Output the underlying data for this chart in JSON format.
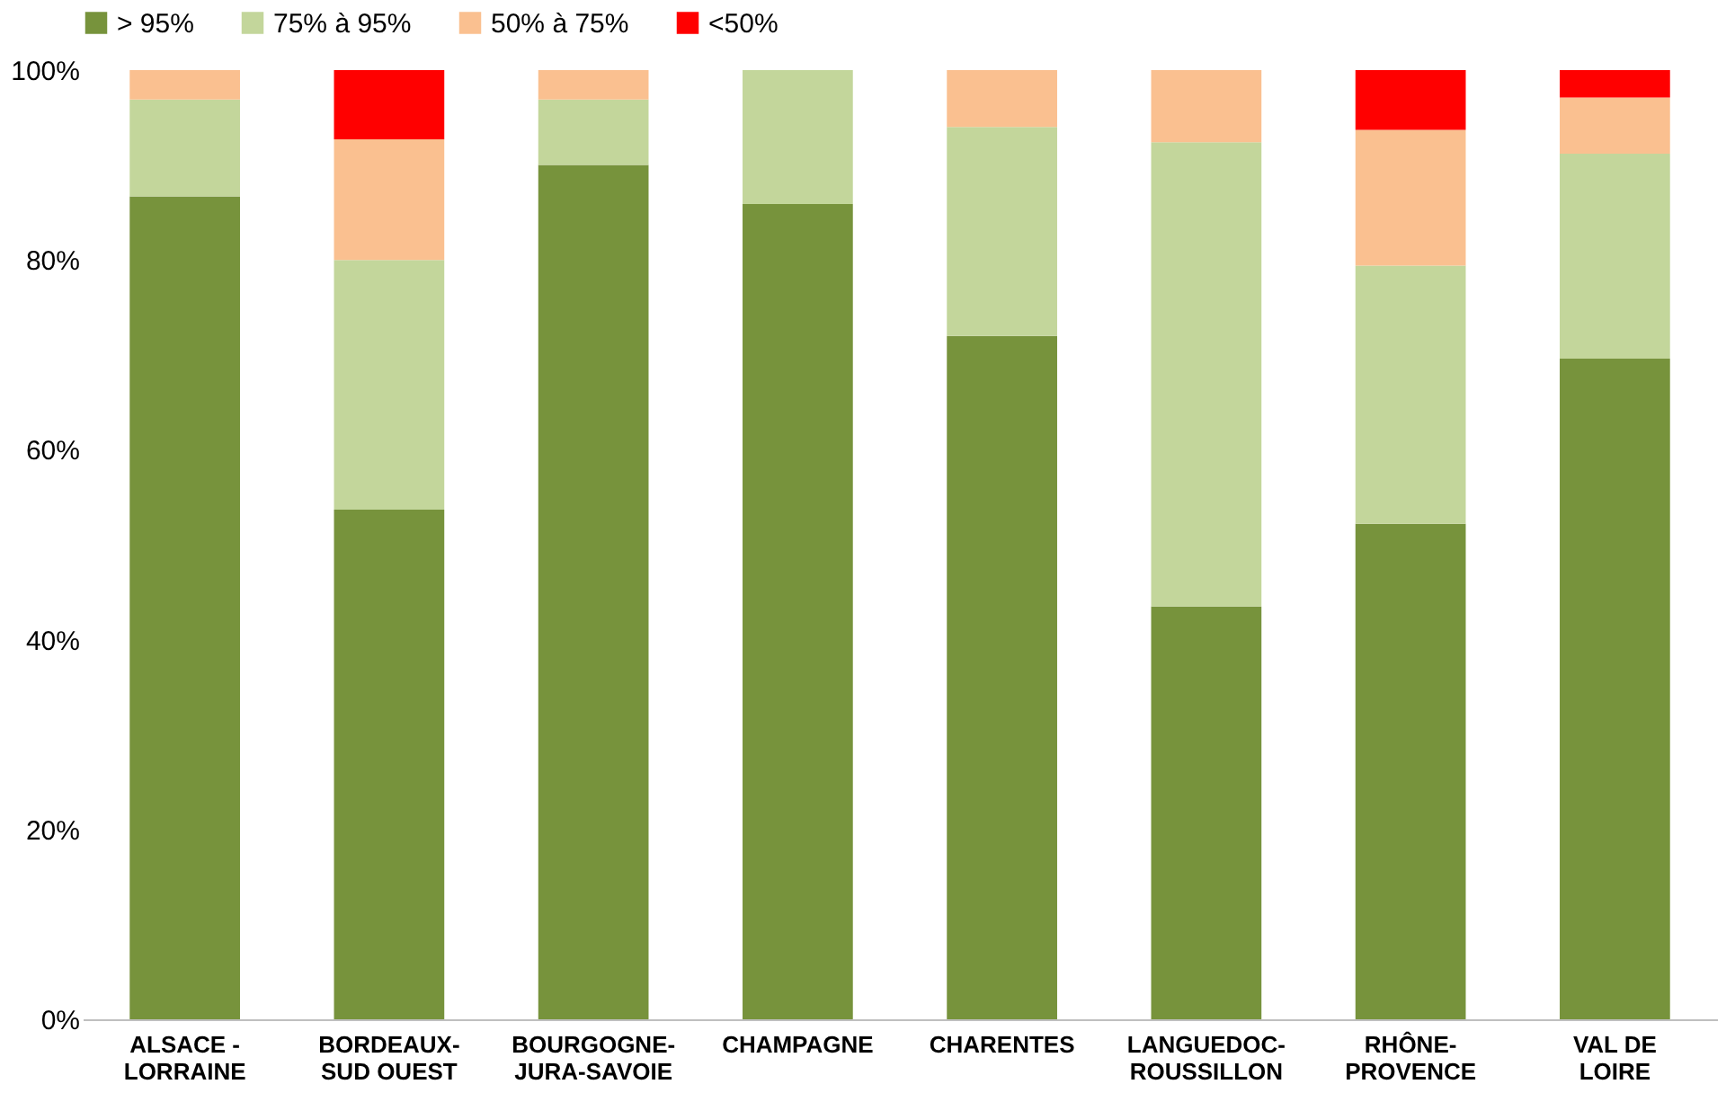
{
  "chart_data": {
    "type": "bar",
    "stacked": true,
    "categories": [
      "ALSACE -\nLORRAINE",
      "BORDEAUX-\nSUD OUEST",
      "BOURGOGNE-\nJURA-SAVOIE",
      "CHAMPAGNE",
      "CHARENTES",
      "LANGUEDOC-\nROUSSILLON",
      "RHÔNE-\nPROVENCE",
      "VAL DE\nLOIRE"
    ],
    "series": [
      {
        "name": "> 95%",
        "color": "#77933c",
        "values": [
          86.7,
          53.7,
          90.0,
          85.9,
          72.0,
          43.5,
          52.2,
          69.6
        ]
      },
      {
        "name": "75% à 95%",
        "color": "#c3d69b",
        "values": [
          10.2,
          26.3,
          6.9,
          14.1,
          22.0,
          48.9,
          27.2,
          21.6
        ]
      },
      {
        "name": "50% à 75%",
        "color": "#fac090",
        "values": [
          3.1,
          12.7,
          3.1,
          0,
          6.0,
          7.6,
          14.3,
          5.9
        ]
      },
      {
        "name": "<50%",
        "color": "#ff0000",
        "values": [
          0,
          7.3,
          0,
          0,
          0,
          0,
          6.3,
          2.9
        ]
      }
    ],
    "ylim": [
      0,
      100
    ],
    "yticks": [
      {
        "value": 0,
        "label": "0%"
      },
      {
        "value": 20,
        "label": "20%"
      },
      {
        "value": 40,
        "label": "40%"
      },
      {
        "value": 60,
        "label": "60%"
      },
      {
        "value": 80,
        "label": "80%"
      },
      {
        "value": 100,
        "label": "100%"
      }
    ],
    "grid": false,
    "legend": "top"
  }
}
